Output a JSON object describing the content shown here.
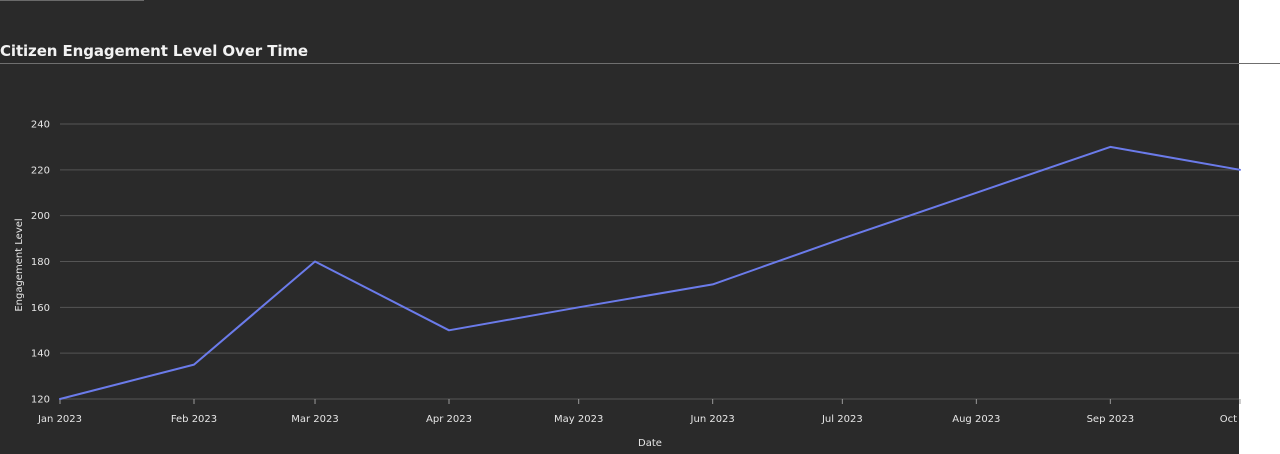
{
  "chart_data": {
    "type": "line",
    "title": "Citizen Engagement Level Over Time",
    "xlabel": "Date",
    "ylabel": "Engagement Level",
    "x": [
      "2023-01-01",
      "2023-02-01",
      "2023-03-01",
      "2023-04-01",
      "2023-05-01",
      "2023-06-01",
      "2023-07-01",
      "2023-08-01",
      "2023-09-01",
      "2023-10-01"
    ],
    "x_tick_labels": [
      "Jan 2023",
      "Feb 2023",
      "Mar 2023",
      "Apr 2023",
      "May 2023",
      "Jun 2023",
      "Jul 2023",
      "Aug 2023",
      "Sep 2023",
      "Oct"
    ],
    "series": [
      {
        "values": [
          120,
          135,
          180,
          150,
          160,
          170,
          190,
          210,
          230,
          220
        ],
        "color": "#6b7bea"
      }
    ],
    "y_ticks": [
      120,
      140,
      160,
      180,
      200,
      220,
      240
    ],
    "ylim": [
      120,
      240
    ],
    "grid": true,
    "legend": "none"
  },
  "colors": {
    "background": "#2a2a2a",
    "grid": "#555555",
    "text": "#e6e6e6",
    "line": "#6b7bea"
  }
}
